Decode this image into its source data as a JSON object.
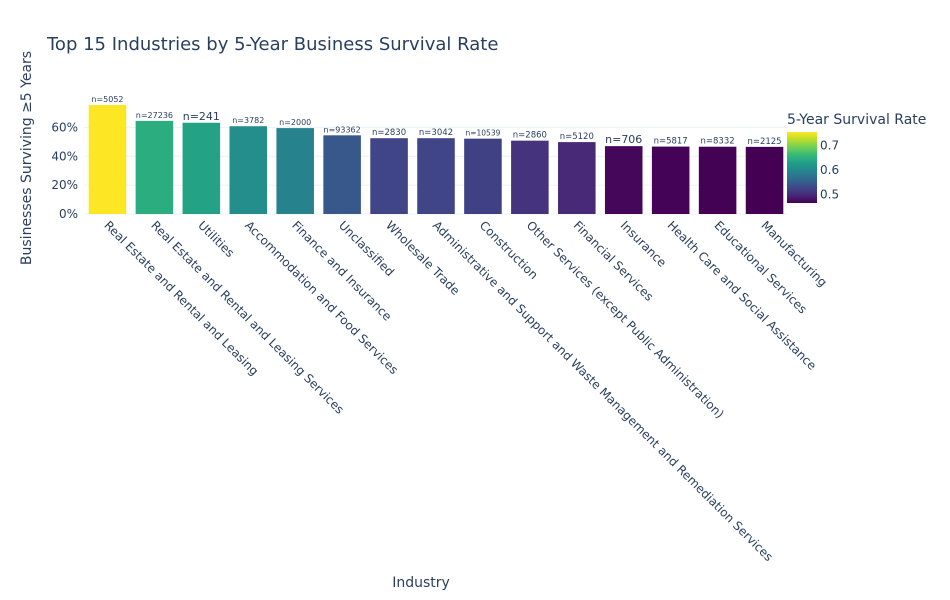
{
  "chart_data": {
    "type": "bar",
    "title": "Top 15 Industries by 5-Year Business Survival Rate",
    "xlabel": "Industry",
    "ylabel": "Businesses Surviving ≥5 Years",
    "categories": [
      "Real Estate and Rental and Leasing",
      "Real Estate and Rental and Leasing Services",
      "Utilities",
      "Accommodation and Food Services",
      "Finance and Insurance",
      "Unclassified",
      "Wholesale Trade",
      "Administrative and Support and Waste Management and Remediation Services",
      "Construction",
      "Other Services (except Public Administration)",
      "Financial Services",
      "Insurance",
      "Health Care and Social Assistance",
      "Educational Services",
      "Manufacturing"
    ],
    "values": [
      0.755,
      0.645,
      0.632,
      0.608,
      0.595,
      0.545,
      0.525,
      0.525,
      0.522,
      0.508,
      0.498,
      0.47,
      0.467,
      0.466,
      0.465
    ],
    "labels": [
      "n=5052",
      "n=27236",
      "n=241",
      "n=3782",
      "n=2000",
      "n=93362",
      "n=2830",
      "n=3042",
      "n=10539",
      "n=2860",
      "n=5120",
      "n=706",
      "n=5817",
      "n=8332",
      "n=2125"
    ],
    "label_font_sizes": [
      8,
      8,
      11,
      8,
      8,
      8,
      8.5,
      8.5,
      7.5,
      8.5,
      8.5,
      11,
      8.5,
      8.5,
      8.5
    ],
    "ylim": [
      0,
      0.755
    ],
    "yticks": [
      0,
      0.2,
      0.4,
      0.6
    ],
    "ytick_labels": [
      "0%",
      "20%",
      "40%",
      "60%"
    ],
    "grid": true,
    "colorscale": "Viridis",
    "colorbar": {
      "title": "5-Year Survival Rate",
      "range": [
        0.465,
        0.755
      ],
      "ticks": [
        0.5,
        0.6,
        0.7
      ],
      "tick_labels": [
        "0.5",
        "0.6",
        "0.7"
      ],
      "placement": "right"
    }
  }
}
